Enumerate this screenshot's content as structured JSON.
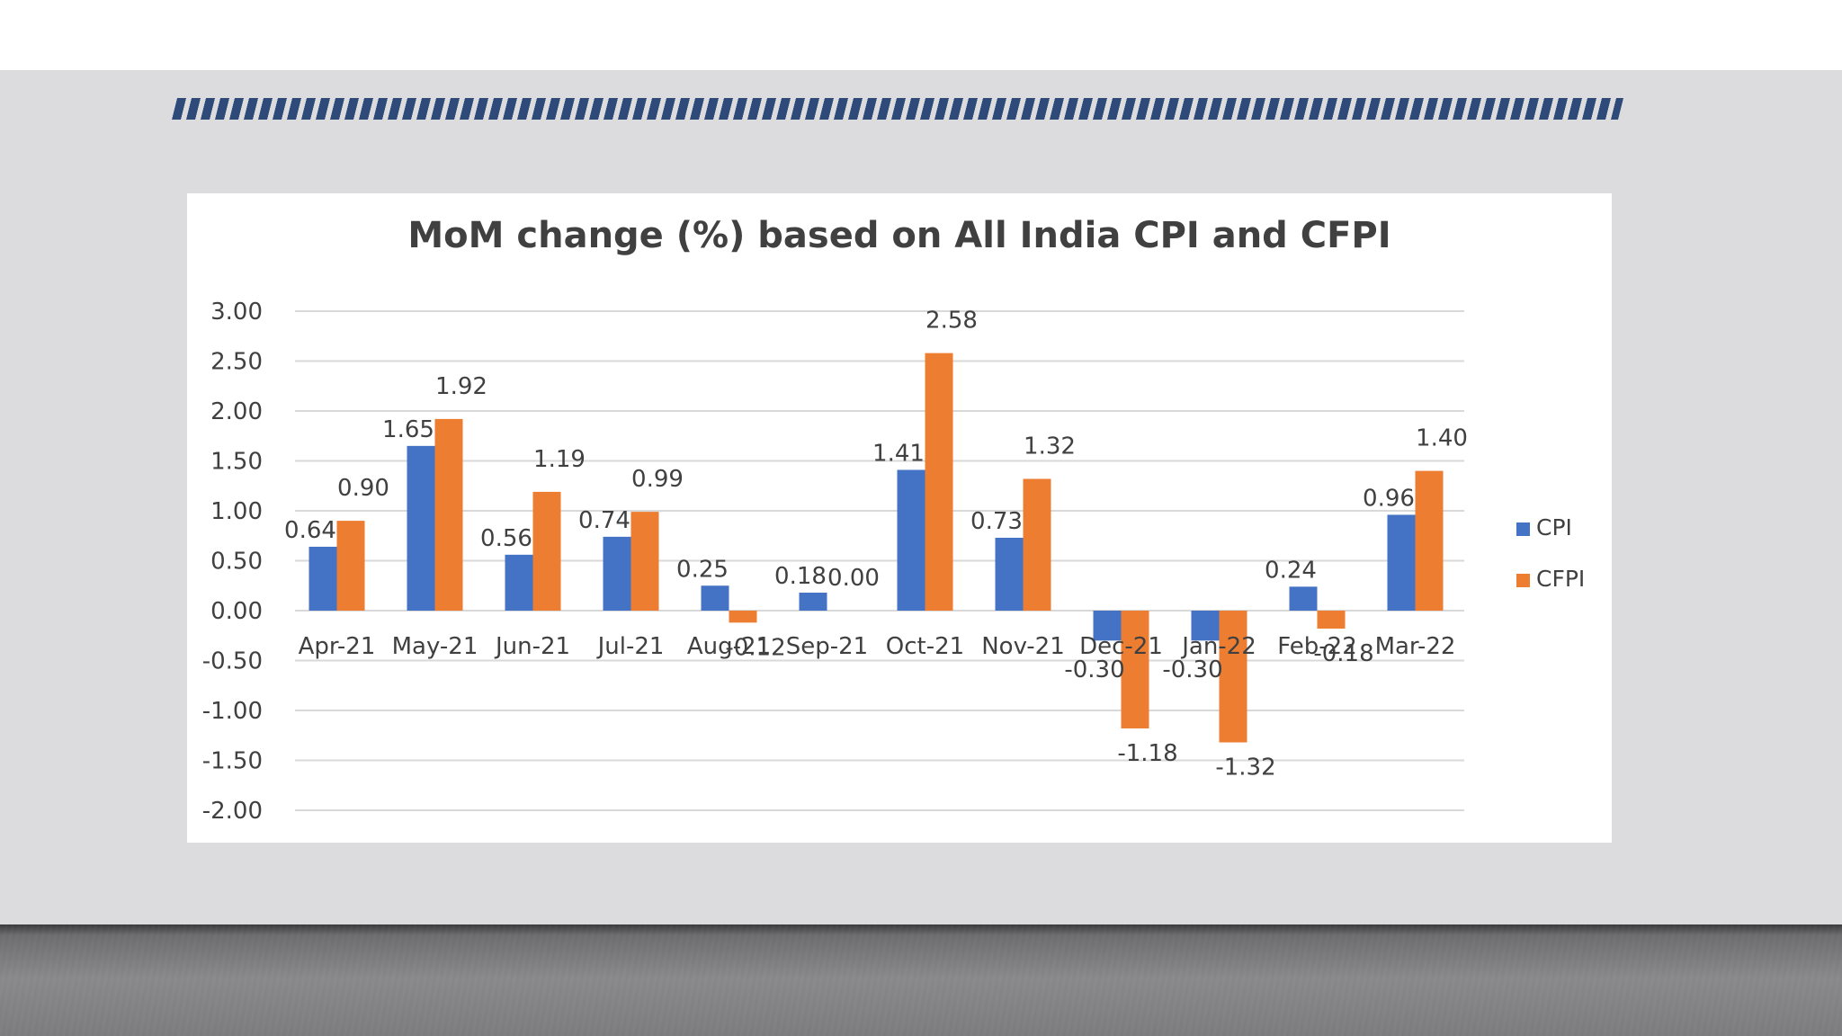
{
  "colors": {
    "cpi": "#4472c4",
    "cfpi": "#ed7d31",
    "grid": "#d9d9d9",
    "text": "#404040",
    "title": "#404040"
  },
  "chart_data": {
    "type": "bar",
    "title": "MoM change (%) based on All India CPI and CFPI",
    "categories": [
      "Apr-21",
      "May-21",
      "Jun-21",
      "Jul-21",
      "Aug-21",
      "Sep-21",
      "Oct-21",
      "Nov-21",
      "Dec-21",
      "Jan-22",
      "Feb-22",
      "Mar-22"
    ],
    "series": [
      {
        "name": "CPI",
        "values": [
          0.64,
          1.65,
          0.56,
          0.74,
          0.25,
          0.18,
          1.41,
          0.73,
          -0.3,
          -0.3,
          0.24,
          0.96
        ]
      },
      {
        "name": "CFPI",
        "values": [
          0.9,
          1.92,
          1.19,
          0.99,
          -0.12,
          0.0,
          2.58,
          1.32,
          -1.18,
          -1.32,
          -0.18,
          1.4
        ]
      }
    ],
    "ylim": [
      -2.0,
      3.0
    ],
    "yticks": [
      "3.00",
      "2.50",
      "2.00",
      "1.50",
      "1.00",
      "0.50",
      "0.00",
      "-0.50",
      "-1.00",
      "-1.50",
      "-2.00"
    ],
    "legend": "right",
    "grid": true
  }
}
